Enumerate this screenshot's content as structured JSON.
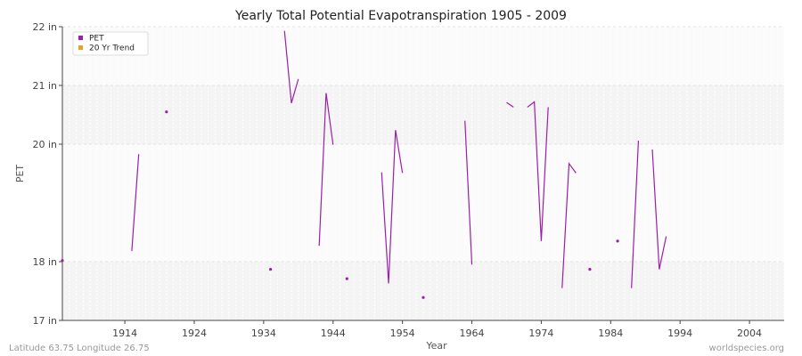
{
  "chart_data": {
    "type": "line",
    "title": "Yearly Total Potential Evapotranspiration 1905 - 2009",
    "xlabel": "Year",
    "ylabel": "PET",
    "xlim": [
      1905,
      2009
    ],
    "ylim": [
      17,
      22
    ],
    "x_ticks": [
      1914,
      1924,
      1934,
      1944,
      1954,
      1964,
      1974,
      1984,
      1994,
      2004
    ],
    "y_ticks": [
      {
        "value": 17,
        "label": "17 in"
      },
      {
        "value": 18,
        "label": "18 in"
      },
      {
        "value": 20,
        "label": "20 in"
      },
      {
        "value": 21,
        "label": "21 in"
      },
      {
        "value": 22,
        "label": "22 in"
      }
    ],
    "legend": {
      "placement": "top-left",
      "entries": [
        {
          "label": "PET",
          "color": "#9b1fa8"
        },
        {
          "label": "20 Yr Trend",
          "color": "#f0a01e"
        }
      ]
    },
    "grid": true,
    "series": [
      {
        "name": "PET",
        "color": "#9b1fa8",
        "values": [
          [
            1905,
            18.02
          ],
          [
            1906,
            null
          ],
          [
            1907,
            null
          ],
          [
            1908,
            null
          ],
          [
            1909,
            null
          ],
          [
            1910,
            null
          ],
          [
            1911,
            null
          ],
          [
            1912,
            null
          ],
          [
            1913,
            null
          ],
          [
            1914,
            null
          ],
          [
            1915,
            18.18
          ],
          [
            1916,
            19.83
          ],
          [
            1917,
            null
          ],
          [
            1918,
            null
          ],
          [
            1919,
            null
          ],
          [
            1920,
            20.55
          ],
          [
            1921,
            null
          ],
          [
            1922,
            null
          ],
          [
            1923,
            null
          ],
          [
            1924,
            null
          ],
          [
            1925,
            null
          ],
          [
            1926,
            null
          ],
          [
            1927,
            null
          ],
          [
            1928,
            null
          ],
          [
            1929,
            null
          ],
          [
            1930,
            null
          ],
          [
            1931,
            null
          ],
          [
            1932,
            null
          ],
          [
            1933,
            null
          ],
          [
            1934,
            null
          ],
          [
            1935,
            17.87
          ],
          [
            1936,
            null
          ],
          [
            1937,
            21.93
          ],
          [
            1938,
            20.7
          ],
          [
            1939,
            21.11
          ],
          [
            1940,
            null
          ],
          [
            1941,
            null
          ],
          [
            1942,
            18.27
          ],
          [
            1943,
            20.87
          ],
          [
            1944,
            19.99
          ],
          [
            1945,
            null
          ],
          [
            1946,
            17.71
          ],
          [
            1947,
            null
          ],
          [
            1948,
            null
          ],
          [
            1949,
            null
          ],
          [
            1950,
            null
          ],
          [
            1951,
            19.52
          ],
          [
            1952,
            17.63
          ],
          [
            1953,
            20.24
          ],
          [
            1954,
            19.51
          ],
          [
            1955,
            null
          ],
          [
            1956,
            null
          ],
          [
            1957,
            17.39
          ],
          [
            1958,
            null
          ],
          [
            1959,
            null
          ],
          [
            1960,
            null
          ],
          [
            1961,
            null
          ],
          [
            1962,
            null
          ],
          [
            1963,
            20.4
          ],
          [
            1964,
            17.95
          ],
          [
            1965,
            null
          ],
          [
            1966,
            null
          ],
          [
            1967,
            null
          ],
          [
            1968,
            null
          ],
          [
            1969,
            20.71
          ],
          [
            1970,
            20.63
          ],
          [
            1971,
            null
          ],
          [
            1972,
            20.63
          ],
          [
            1973,
            20.72
          ],
          [
            1974,
            18.35
          ],
          [
            1975,
            20.63
          ],
          [
            1976,
            null
          ],
          [
            1977,
            17.55
          ],
          [
            1978,
            19.67
          ],
          [
            1979,
            19.51
          ],
          [
            1980,
            null
          ],
          [
            1981,
            17.87
          ],
          [
            1982,
            null
          ],
          [
            1983,
            null
          ],
          [
            1984,
            null
          ],
          [
            1985,
            18.35
          ],
          [
            1986,
            null
          ],
          [
            1987,
            17.55
          ],
          [
            1988,
            20.06
          ],
          [
            1989,
            null
          ],
          [
            1990,
            19.91
          ],
          [
            1991,
            17.87
          ],
          [
            1992,
            18.43
          ],
          [
            1993,
            null
          ],
          [
            1994,
            null
          ],
          [
            1995,
            null
          ],
          [
            1996,
            null
          ],
          [
            1997,
            null
          ],
          [
            1998,
            null
          ],
          [
            1999,
            null
          ],
          [
            2000,
            null
          ],
          [
            2001,
            null
          ],
          [
            2002,
            null
          ],
          [
            2003,
            null
          ],
          [
            2004,
            null
          ],
          [
            2005,
            null
          ],
          [
            2006,
            null
          ],
          [
            2007,
            null
          ],
          [
            2008,
            null
          ],
          [
            2009,
            null
          ]
        ]
      }
    ]
  },
  "footer": {
    "left": "Latitude 63.75 Longitude 26.75",
    "right": "worldspecies.org"
  }
}
